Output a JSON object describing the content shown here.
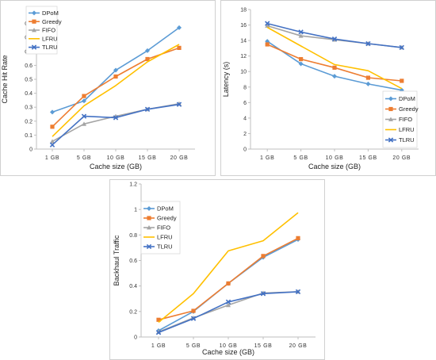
{
  "chart_data": [
    {
      "type": "line",
      "categories": [
        "1 GB",
        "5 GB",
        "10 GB",
        "15 GB",
        "20 GB"
      ],
      "xlabel": "Cache size (GB)",
      "ylabel": "Cache Hit Rate",
      "ylim": [
        0,
        1
      ],
      "yticks": [
        "0",
        "0.1",
        "0.2",
        "0.3",
        "0.4",
        "0.5",
        "0.6",
        "0.7",
        "0.8",
        "0.9",
        "1"
      ],
      "grid": false,
      "legend": "top-left",
      "series": [
        {
          "name": "DPoM",
          "color": "#5b9bd5",
          "marker": "diamond",
          "values": [
            0.265,
            0.345,
            0.565,
            0.705,
            0.87
          ]
        },
        {
          "name": "Greedy",
          "color": "#ed7d31",
          "marker": "square",
          "values": [
            0.16,
            0.38,
            0.52,
            0.645,
            0.725
          ]
        },
        {
          "name": "FIFO",
          "color": "#a5a5a5",
          "marker": "triangle",
          "values": [
            0.055,
            0.18,
            0.235,
            0.285,
            0.325
          ]
        },
        {
          "name": "LFRU",
          "color": "#ffc000",
          "marker": "none",
          "values": [
            0.09,
            0.31,
            0.455,
            0.625,
            0.75
          ]
        },
        {
          "name": "TLRU",
          "color": "#4472c4",
          "marker": "x",
          "values": [
            0.03,
            0.235,
            0.225,
            0.285,
            0.32
          ]
        }
      ]
    },
    {
      "type": "line",
      "categories": [
        "1 GB",
        "5 GB",
        "10 GB",
        "15 GB",
        "20 GB"
      ],
      "xlabel": "Cache size (GB)",
      "ylabel": "Latency (s)",
      "ylim": [
        0,
        18
      ],
      "yticks": [
        "0",
        "2",
        "4",
        "6",
        "8",
        "10",
        "12",
        "14",
        "16",
        "18"
      ],
      "grid": false,
      "legend": "bottom-right",
      "series": [
        {
          "name": "DPoM",
          "color": "#5b9bd5",
          "marker": "diamond",
          "values": [
            13.9,
            11.0,
            9.4,
            8.4,
            7.6
          ]
        },
        {
          "name": "Greedy",
          "color": "#ed7d31",
          "marker": "square",
          "values": [
            13.5,
            11.6,
            10.5,
            9.2,
            8.8
          ]
        },
        {
          "name": "FIFO",
          "color": "#a5a5a5",
          "marker": "triangle",
          "values": [
            15.9,
            14.6,
            14.1,
            13.6,
            13.1
          ]
        },
        {
          "name": "LFRU",
          "color": "#ffc000",
          "marker": "none",
          "values": [
            15.7,
            13.3,
            10.9,
            10.1,
            7.8
          ]
        },
        {
          "name": "TLRU",
          "color": "#4472c4",
          "marker": "x",
          "values": [
            16.2,
            15.1,
            14.2,
            13.6,
            13.1
          ]
        }
      ]
    },
    {
      "type": "line",
      "categories": [
        "1 GB",
        "5 GB",
        "10 GB",
        "15 GB",
        "20 GB"
      ],
      "xlabel": "Cache size (GB)",
      "ylabel": "Backhaul Traffic",
      "ylim": [
        0,
        1.2
      ],
      "yticks": [
        "0",
        "0.2",
        "0.4",
        "0.6",
        "0.8",
        "1",
        "1.2"
      ],
      "grid": false,
      "legend": "top-left",
      "series": [
        {
          "name": "DPoM",
          "color": "#5b9bd5",
          "marker": "diamond",
          "values": [
            0.05,
            0.2,
            0.42,
            0.625,
            0.765
          ]
        },
        {
          "name": "Greedy",
          "color": "#ed7d31",
          "marker": "square",
          "values": [
            0.135,
            0.205,
            0.42,
            0.635,
            0.775
          ]
        },
        {
          "name": "FIFO",
          "color": "#a5a5a5",
          "marker": "triangle",
          "values": [
            0.04,
            0.15,
            0.25,
            0.345,
            0.355
          ]
        },
        {
          "name": "LFRU",
          "color": "#ffc000",
          "marker": "none",
          "values": [
            0.115,
            0.34,
            0.675,
            0.755,
            0.975
          ]
        },
        {
          "name": "TLRU",
          "color": "#4472c4",
          "marker": "x",
          "values": [
            0.035,
            0.145,
            0.275,
            0.34,
            0.355
          ]
        }
      ]
    }
  ]
}
